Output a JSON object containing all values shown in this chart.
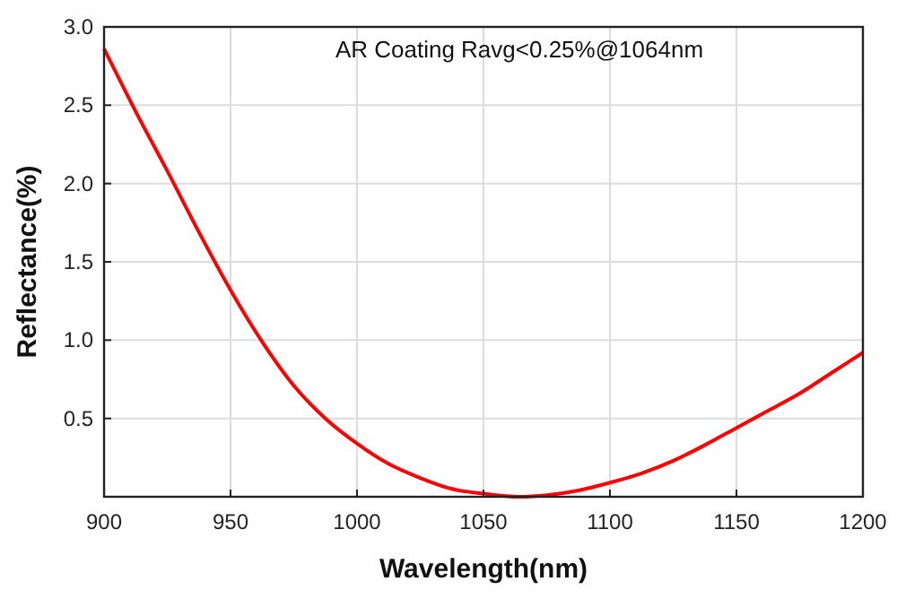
{
  "chart_data": {
    "type": "line",
    "xlabel": "Wavelength(nm)",
    "ylabel": "Reflectance(%)",
    "annotations": [
      "AR Coating Ravg<0.25%@1064nm"
    ],
    "x": [
      900,
      912.5,
      925,
      937.5,
      950,
      962.5,
      975,
      987.5,
      1000,
      1012.5,
      1025,
      1037.5,
      1050,
      1064,
      1075,
      1087.5,
      1100,
      1112.5,
      1125,
      1137.5,
      1150,
      1162.5,
      1175,
      1187.5,
      1200
    ],
    "series": [
      {
        "color": "#ff0000",
        "values": [
          2.86,
          2.46,
          2.08,
          1.69,
          1.32,
          0.99,
          0.71,
          0.5,
          0.34,
          0.21,
          0.12,
          0.05,
          0.02,
          0,
          0.01,
          0.04,
          0.09,
          0.15,
          0.23,
          0.33,
          0.44,
          0.55,
          0.66,
          0.79,
          0.92
        ]
      }
    ],
    "xlim": [
      900,
      1200
    ],
    "xticks": [
      900,
      950,
      1000,
      1050,
      1100,
      1150,
      1200
    ],
    "ylim": [
      0,
      3
    ],
    "yticks": [
      0.5,
      {
        "value": 1,
        "label": "1.0"
      },
      1.5,
      {
        "value": 2,
        "label": "2.0"
      },
      2.5,
      {
        "value": 3,
        "label": "3.0"
      }
    ],
    "grid": true,
    "line_style": "solid",
    "marker": "none"
  }
}
